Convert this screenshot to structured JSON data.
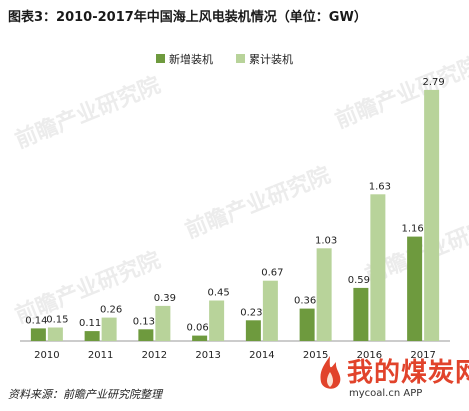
{
  "title": "图表3：2010-2017年中国海上风电装机情况（单位：GW）",
  "source": "资料来源：前瞻产业研究院整理",
  "watermark": "前瞻产业研究院",
  "logo": {
    "cn": "我的煤炭网",
    "en": "mycoal.cn  APP"
  },
  "colors": {
    "new": "#6e9a3e",
    "cumulative": "#b8d39a"
  },
  "chart_data": {
    "type": "bar",
    "categories": [
      "2010",
      "2011",
      "2012",
      "2013",
      "2014",
      "2015",
      "2016",
      "2017"
    ],
    "series": [
      {
        "name": "新增装机",
        "values": [
          0.14,
          0.11,
          0.13,
          0.06,
          0.23,
          0.36,
          0.59,
          1.16
        ]
      },
      {
        "name": "累计装机",
        "values": [
          0.15,
          0.26,
          0.39,
          0.45,
          0.67,
          1.03,
          1.63,
          2.79
        ]
      }
    ],
    "value_labels": [
      [
        "0.14",
        "0.11",
        "0.13",
        "0.06",
        "0.23",
        "0.36",
        "0.59",
        "1.16"
      ],
      [
        "0.15",
        "0.26",
        "0.39",
        "0.45",
        "0.67",
        "1.03",
        "1.63",
        "2.79"
      ]
    ],
    "ylim": [
      0,
      2.9
    ],
    "grid": false,
    "legend_position": "top-center"
  }
}
